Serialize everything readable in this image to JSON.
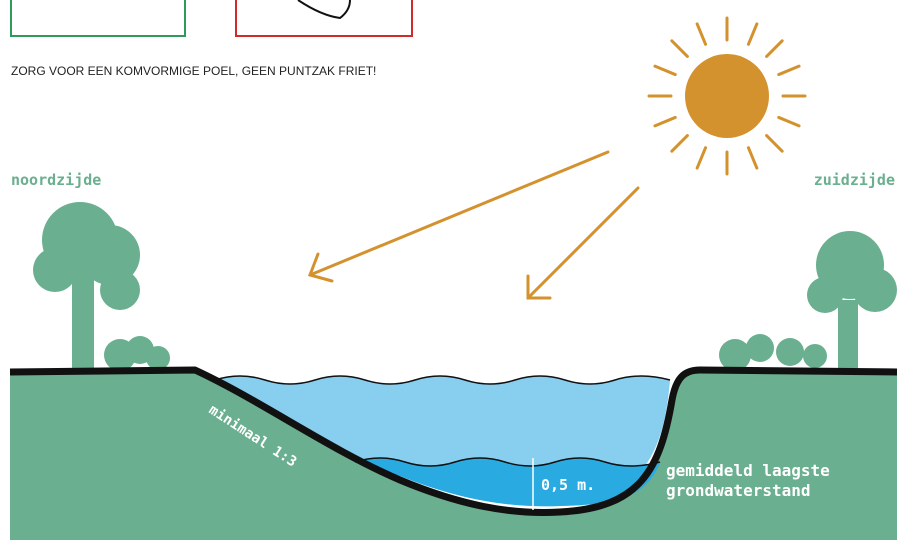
{
  "caption": "ZORG VOOR EEN KOMVORMIGE POEL, GEEN PUNTZAK FRIET!",
  "labels": {
    "north": "noordzijde",
    "south": "zuidzijde",
    "slope": "minimaal 1:3",
    "depth": "0,5 m.",
    "groundwater": [
      "gemiddeld laagste",
      "grondwaterstand"
    ]
  }
}
